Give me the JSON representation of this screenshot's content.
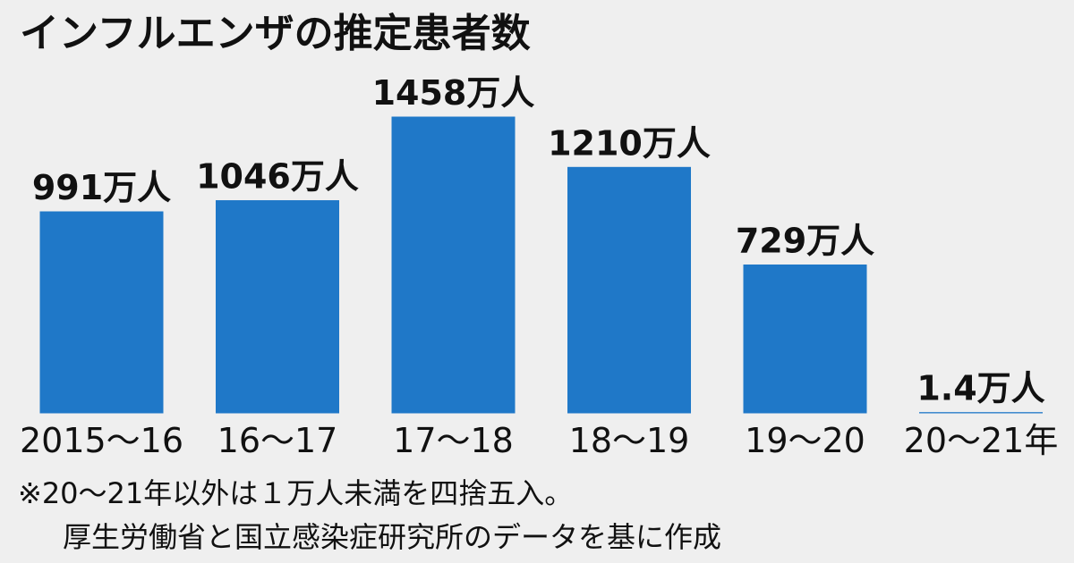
{
  "chart_data": {
    "type": "bar",
    "title": "インフルエンザの推定患者数",
    "categories": [
      "2015～16",
      "16～17",
      "17～18",
      "18～19",
      "19～20",
      "20～21年"
    ],
    "values": [
      991,
      1046,
      1458,
      1210,
      729,
      1.4
    ],
    "value_labels": [
      "991万人",
      "1046万人",
      "1458万人",
      "1210万人",
      "729万人",
      "1.4万人"
    ],
    "color": "#1f78c8",
    "notes": [
      "※20～21年以外は１万人未満を四捨五入。",
      "厚生労働省と国立感染症研究所のデータを基に作成"
    ]
  }
}
